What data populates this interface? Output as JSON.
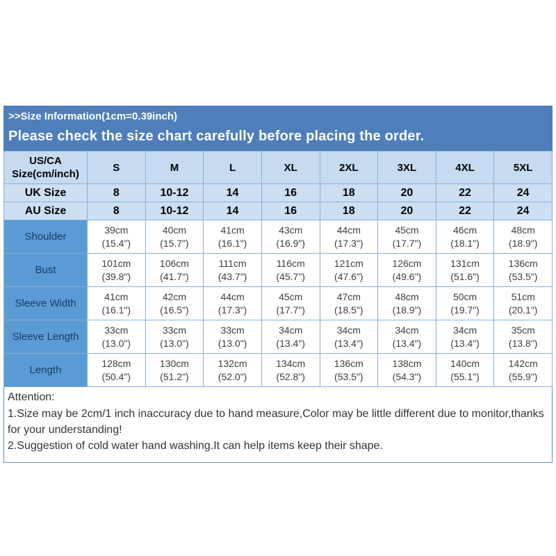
{
  "banner": {
    "line1": ">>Size Information(1cm=0.39inch)",
    "line2": "Please check the size chart carefully before placing the order."
  },
  "table": {
    "header": [
      "US/CA Size(cm/inch)",
      "S",
      "M",
      "L",
      "XL",
      "2XL",
      "3XL",
      "4XL",
      "5XL"
    ],
    "uk": [
      "UK Size",
      "8",
      "10-12",
      "14",
      "16",
      "18",
      "20",
      "22",
      "24"
    ],
    "au": [
      "AU Size",
      "8",
      "10-12",
      "14",
      "16",
      "18",
      "20",
      "22",
      "24"
    ],
    "measurements": [
      {
        "label": "Shoulder",
        "cells": [
          {
            "cm": "39cm",
            "inch": "(15.4\")"
          },
          {
            "cm": "40cm",
            "inch": "(15.7\")"
          },
          {
            "cm": "41cm",
            "inch": "(16.1\")"
          },
          {
            "cm": "43cm",
            "inch": "(16.9\")"
          },
          {
            "cm": "44cm",
            "inch": "(17.3\")"
          },
          {
            "cm": "45cm",
            "inch": "(17.7\")"
          },
          {
            "cm": "46cm",
            "inch": "(18.1\")"
          },
          {
            "cm": "48cm",
            "inch": "(18.9\")"
          }
        ]
      },
      {
        "label": "Bust",
        "cells": [
          {
            "cm": "101cm",
            "inch": "(39.8\")"
          },
          {
            "cm": "106cm",
            "inch": "(41.7\")"
          },
          {
            "cm": "111cm",
            "inch": "(43.7\")"
          },
          {
            "cm": "116cm",
            "inch": "(45.7\")"
          },
          {
            "cm": "121cm",
            "inch": "(47.6\")"
          },
          {
            "cm": "126cm",
            "inch": "(49.6\")"
          },
          {
            "cm": "131cm",
            "inch": "(51.6\")"
          },
          {
            "cm": "136cm",
            "inch": "(53.5\")"
          }
        ]
      },
      {
        "label": "Sleeve Width",
        "cells": [
          {
            "cm": "41cm",
            "inch": "(16.1\")"
          },
          {
            "cm": "42cm",
            "inch": "(16.5\")"
          },
          {
            "cm": "44cm",
            "inch": "(17.3\")"
          },
          {
            "cm": "45cm",
            "inch": "(17.7\")"
          },
          {
            "cm": "47cm",
            "inch": "(18.5\")"
          },
          {
            "cm": "48cm",
            "inch": "(18.9\")"
          },
          {
            "cm": "50cm",
            "inch": "(19.7\")"
          },
          {
            "cm": "51cm",
            "inch": "(20.1\")"
          }
        ]
      },
      {
        "label": "Sleeve Length",
        "cells": [
          {
            "cm": "33cm",
            "inch": "(13.0\")"
          },
          {
            "cm": "33cm",
            "inch": "(13.0\")"
          },
          {
            "cm": "33cm",
            "inch": "(13.0\")"
          },
          {
            "cm": "34cm",
            "inch": "(13.4\")"
          },
          {
            "cm": "34cm",
            "inch": "(13.4\")"
          },
          {
            "cm": "34cm",
            "inch": "(13.4\")"
          },
          {
            "cm": "34cm",
            "inch": "(13.4\")"
          },
          {
            "cm": "35cm",
            "inch": "(13.8\")"
          }
        ]
      },
      {
        "label": "Length",
        "cells": [
          {
            "cm": "128cm",
            "inch": "(50.4\")"
          },
          {
            "cm": "130cm",
            "inch": "(51.2\")"
          },
          {
            "cm": "132cm",
            "inch": "(52.0\")"
          },
          {
            "cm": "134cm",
            "inch": "(52.8\")"
          },
          {
            "cm": "136cm",
            "inch": "(53.5\")"
          },
          {
            "cm": "138cm",
            "inch": "(54.3\")"
          },
          {
            "cm": "140cm",
            "inch": "(55.1\")"
          },
          {
            "cm": "142cm",
            "inch": "(55.9\")"
          }
        ]
      }
    ]
  },
  "attention": {
    "title": "Attention:",
    "note1": "1.Size may be 2cm/1 inch inaccuracy due to hand measure,Color may be little different due to monitor,thanks for your understanding!",
    "note2": "2.Suggestion of cold water hand washing.It can help items keep their shape."
  },
  "colors": {
    "banner_blue": "#4e7fba",
    "header_row_bg": "#c6dbf0",
    "size_row_bg": "#cddff2",
    "label_cell_bg": "#5b9bd5",
    "border": "#88aed8",
    "label_text": "#1a3c68"
  }
}
